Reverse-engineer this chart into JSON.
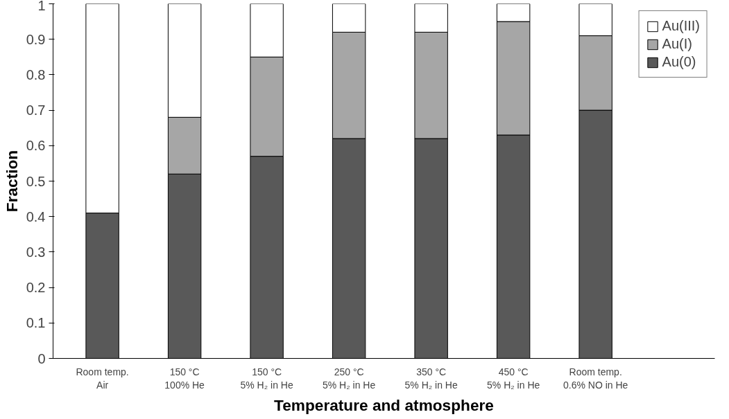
{
  "chart_data": {
    "type": "bar",
    "stacked": true,
    "xlabel": "Temperature and atmosphere",
    "ylabel": "Fraction",
    "categories": [
      "Room temp.\nAir",
      "150 °C\n100% He",
      "150 °C\n5% H₂ in He",
      "250 °C\n5% H₂ in He",
      "350 °C\n5% H₂ in He",
      "450 °C\n5% H₂ in He",
      "Room temp.\n0.6% NO in He"
    ],
    "series": [
      {
        "name": "Au(0)",
        "color": "#595959",
        "values": [
          0.41,
          0.52,
          0.57,
          0.62,
          0.62,
          0.63,
          0.7
        ]
      },
      {
        "name": "Au(I)",
        "color": "#a6a6a6",
        "values": [
          0,
          0.16,
          0.28,
          0.3,
          0.3,
          0.32,
          0.21
        ]
      },
      {
        "name": "Au(III)",
        "color": "#ffffff",
        "values": [
          0.59,
          0.32,
          0.15,
          0.08,
          0.08,
          0.05,
          0.09
        ]
      }
    ],
    "ylim": [
      0,
      1
    ],
    "yticks": [
      0,
      0.1,
      0.2,
      0.3,
      0.4,
      0.5,
      0.6,
      0.7,
      0.8,
      0.9,
      1
    ],
    "grid": false,
    "legend": "top right"
  }
}
